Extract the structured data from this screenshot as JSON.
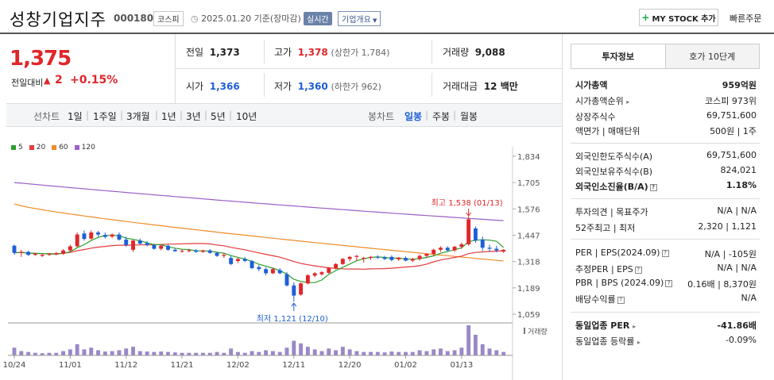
{
  "header": {
    "company_name": "성창기업지주",
    "code": "000180",
    "market": "코스피",
    "date_text": "2025.01.20 기준(장마감)",
    "realtime": "실시간",
    "company_info": "기업개요",
    "mystock_label": "MY STOCK 추가",
    "fast_order": "빠른주문"
  },
  "price": {
    "current": "1,375",
    "change_label": "전일대비",
    "change_value": "2",
    "change_pct": "+0.15%"
  },
  "summary": {
    "prev_label": "전일",
    "prev": "1,373",
    "high_label": "고가",
    "high": "1,378",
    "upper_limit": "(상한가 1,784)",
    "volume_label": "거래량",
    "volume": "9,088",
    "open_label": "시가",
    "open": "1,366",
    "low_label": "저가",
    "low": "1,360",
    "lower_limit": "(하한가 962)",
    "amount_label": "거래대금",
    "amount": "12 백만"
  },
  "period_tabs": {
    "line_label": "선차트",
    "line_items": [
      "1일",
      "1주일",
      "3개월",
      "1년",
      "3년",
      "5년",
      "10년"
    ],
    "candle_label": "봉차트",
    "candle_items": [
      "일봉",
      "주봉",
      "월봉"
    ],
    "selected": "일봉"
  },
  "chart_data": {
    "type": "candlestick",
    "legend": [
      {
        "name": "5",
        "color": "#2ca02c"
      },
      {
        "name": "20",
        "color": "#e23b3b"
      },
      {
        "name": "60",
        "color": "#f08c2a"
      },
      {
        "name": "120",
        "color": "#9a5fc8"
      }
    ],
    "y_ticks": [
      "1,834",
      "1,705",
      "1,576",
      "1,447",
      "1,318",
      "1,189",
      "1,059"
    ],
    "ylim": [
      1059,
      1834
    ],
    "x_ticks": [
      "10/24",
      "11/01",
      "11/12",
      "11/21",
      "12/02",
      "12/11",
      "12/20",
      "01/02",
      "01/13"
    ],
    "high_annotation": "최고 1,538 (01/13)",
    "low_annotation": "최저 1,121 (12/10)",
    "volume_label": "거래량",
    "candles": [
      [
        1395,
        1400,
        1350,
        1360
      ],
      [
        1360,
        1375,
        1340,
        1365
      ],
      [
        1365,
        1370,
        1345,
        1350
      ],
      [
        1350,
        1360,
        1345,
        1355
      ],
      [
        1345,
        1355,
        1340,
        1350
      ],
      [
        1350,
        1360,
        1345,
        1355
      ],
      [
        1352,
        1365,
        1348,
        1358
      ],
      [
        1355,
        1378,
        1350,
        1372
      ],
      [
        1372,
        1400,
        1365,
        1392
      ],
      [
        1392,
        1460,
        1388,
        1450
      ],
      [
        1455,
        1470,
        1420,
        1428
      ],
      [
        1430,
        1470,
        1425,
        1460
      ],
      [
        1460,
        1468,
        1440,
        1450
      ],
      [
        1448,
        1460,
        1430,
        1438
      ],
      [
        1440,
        1455,
        1432,
        1450
      ],
      [
        1450,
        1460,
        1420,
        1425
      ],
      [
        1425,
        1440,
        1390,
        1398
      ],
      [
        1375,
        1425,
        1365,
        1420
      ],
      [
        1420,
        1430,
        1400,
        1405
      ],
      [
        1408,
        1418,
        1392,
        1398
      ],
      [
        1398,
        1405,
        1375,
        1380
      ],
      [
        1380,
        1400,
        1372,
        1395
      ],
      [
        1395,
        1400,
        1370,
        1375
      ],
      [
        1375,
        1382,
        1365,
        1368
      ],
      [
        1368,
        1378,
        1360,
        1370
      ],
      [
        1370,
        1380,
        1362,
        1372
      ],
      [
        1372,
        1378,
        1360,
        1365
      ],
      [
        1365,
        1375,
        1360,
        1372
      ],
      [
        1372,
        1378,
        1355,
        1360
      ],
      [
        1360,
        1365,
        1340,
        1345
      ],
      [
        1345,
        1360,
        1335,
        1350
      ],
      [
        1335,
        1345,
        1300,
        1305
      ],
      [
        1320,
        1335,
        1310,
        1330
      ],
      [
        1330,
        1340,
        1315,
        1320
      ],
      [
        1320,
        1325,
        1280,
        1285
      ],
      [
        1290,
        1300,
        1270,
        1280
      ],
      [
        1280,
        1290,
        1250,
        1260
      ],
      [
        1260,
        1285,
        1255,
        1280
      ],
      [
        1275,
        1285,
        1255,
        1260
      ],
      [
        1255,
        1265,
        1195,
        1200
      ],
      [
        1200,
        1215,
        1121,
        1150
      ],
      [
        1155,
        1215,
        1150,
        1210
      ],
      [
        1210,
        1255,
        1205,
        1250
      ],
      [
        1248,
        1265,
        1240,
        1260
      ],
      [
        1255,
        1270,
        1248,
        1265
      ],
      [
        1262,
        1290,
        1258,
        1285
      ],
      [
        1285,
        1310,
        1278,
        1305
      ],
      [
        1305,
        1335,
        1300,
        1330
      ],
      [
        1330,
        1345,
        1318,
        1340
      ],
      [
        1340,
        1350,
        1320,
        1345
      ],
      [
        1330,
        1340,
        1312,
        1335
      ],
      [
        1335,
        1345,
        1325,
        1340
      ],
      [
        1340,
        1348,
        1330,
        1338
      ],
      [
        1338,
        1345,
        1325,
        1330
      ],
      [
        1340,
        1348,
        1318,
        1325
      ],
      [
        1328,
        1340,
        1320,
        1336
      ],
      [
        1335,
        1342,
        1318,
        1322
      ],
      [
        1322,
        1335,
        1315,
        1330
      ],
      [
        1330,
        1352,
        1322,
        1345
      ],
      [
        1345,
        1358,
        1335,
        1355
      ],
      [
        1355,
        1380,
        1345,
        1375
      ],
      [
        1375,
        1392,
        1365,
        1385
      ],
      [
        1385,
        1392,
        1368,
        1372
      ],
      [
        1372,
        1395,
        1365,
        1390
      ],
      [
        1390,
        1410,
        1380,
        1402
      ],
      [
        1402,
        1538,
        1395,
        1525
      ],
      [
        1480,
        1490,
        1410,
        1420
      ],
      [
        1425,
        1440,
        1370,
        1385
      ],
      [
        1385,
        1400,
        1365,
        1380
      ],
      [
        1380,
        1395,
        1362,
        1372
      ],
      [
        1366,
        1378,
        1360,
        1375
      ]
    ],
    "volumes": [
      18,
      10,
      8,
      6,
      5,
      6,
      6,
      10,
      14,
      26,
      14,
      18,
      12,
      9,
      10,
      12,
      16,
      20,
      10,
      9,
      8,
      9,
      8,
      7,
      6,
      6,
      6,
      6,
      6,
      8,
      6,
      16,
      8,
      6,
      10,
      8,
      12,
      10,
      8,
      18,
      34,
      28,
      20,
      14,
      10,
      16,
      12,
      20,
      14,
      10,
      8,
      8,
      8,
      7,
      9,
      8,
      8,
      8,
      12,
      10,
      14,
      16,
      10,
      12,
      18,
      70,
      48,
      26,
      16,
      12,
      8
    ]
  },
  "right_panel": {
    "tab_info": "투자정보",
    "tab_hoga": "호가 10단계",
    "rows": [
      {
        "k": "시가총액",
        "v": "959억원"
      },
      {
        "k": "시가총액순위",
        "v": "코스피 973위"
      },
      {
        "k": "상장주식수",
        "v": "69,751,600"
      },
      {
        "k": "액면가 | 매매단위",
        "v": "500원 | 1주"
      },
      {
        "k": "외국인한도주식수(A)",
        "v": "69,751,600"
      },
      {
        "k": "외국인보유주식수(B)",
        "v": "824,021"
      },
      {
        "k": "외국인소진율(B/A)",
        "v": "1.18%"
      },
      {
        "k": "투자의견 | 목표주가",
        "v": "N/A | N/A"
      },
      {
        "k": "52주최고 | 최저",
        "v": "2,320 | 1,121"
      },
      {
        "k": "PER | EPS(2024.09)",
        "v": "N/A | -105원"
      },
      {
        "k": "추정PER | EPS",
        "v": "N/A | N/A"
      },
      {
        "k": "PBR | BPS (2024.09)",
        "v": "0.16배 | 8,370원"
      },
      {
        "k": "배당수익률",
        "v": "N/A"
      },
      {
        "k": "동일업종 PER",
        "v": "-41.86배"
      },
      {
        "k": "동일업종 등락률",
        "v": "-0.09%"
      }
    ]
  }
}
